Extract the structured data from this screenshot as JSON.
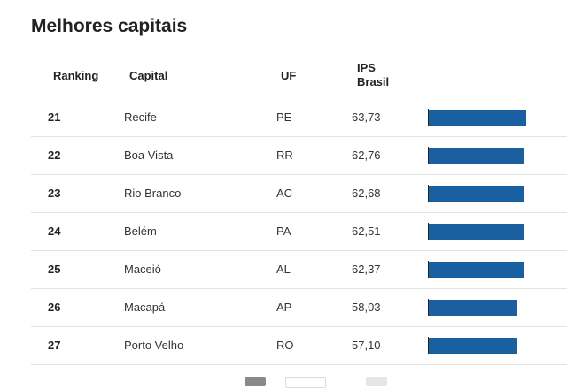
{
  "title": "Melhores capitais",
  "columns": {
    "ranking": "Ranking",
    "capital": "Capital",
    "uf": "UF",
    "ips_line1": "IPS",
    "ips_line2": "Brasil"
  },
  "rows": [
    {
      "ranking": "21",
      "capital": "Recife",
      "uf": "PE",
      "ips": "63,73"
    },
    {
      "ranking": "22",
      "capital": "Boa Vista",
      "uf": "RR",
      "ips": "62,76"
    },
    {
      "ranking": "23",
      "capital": "Rio Branco",
      "uf": "AC",
      "ips": "62,68"
    },
    {
      "ranking": "24",
      "capital": "Belém",
      "uf": "PA",
      "ips": "62,51"
    },
    {
      "ranking": "25",
      "capital": "Maceió",
      "uf": "AL",
      "ips": "62,37"
    },
    {
      "ranking": "26",
      "capital": "Macapá",
      "uf": "AP",
      "ips": "58,03"
    },
    {
      "ranking": "27",
      "capital": "Porto Velho",
      "uf": "RO",
      "ips": "57,10"
    }
  ],
  "chart_data": {
    "type": "bar",
    "categories": [
      "Recife",
      "Boa Vista",
      "Rio Branco",
      "Belém",
      "Maceió",
      "Macapá",
      "Porto Velho"
    ],
    "values": [
      63.73,
      62.76,
      62.68,
      62.51,
      62.37,
      58.03,
      57.1
    ],
    "xlim": [
      0,
      63.73
    ],
    "bar_color": "#1a5fa0"
  },
  "colors": {
    "bar": "#1a5fa0",
    "row_divider": "#e3e3e3"
  }
}
